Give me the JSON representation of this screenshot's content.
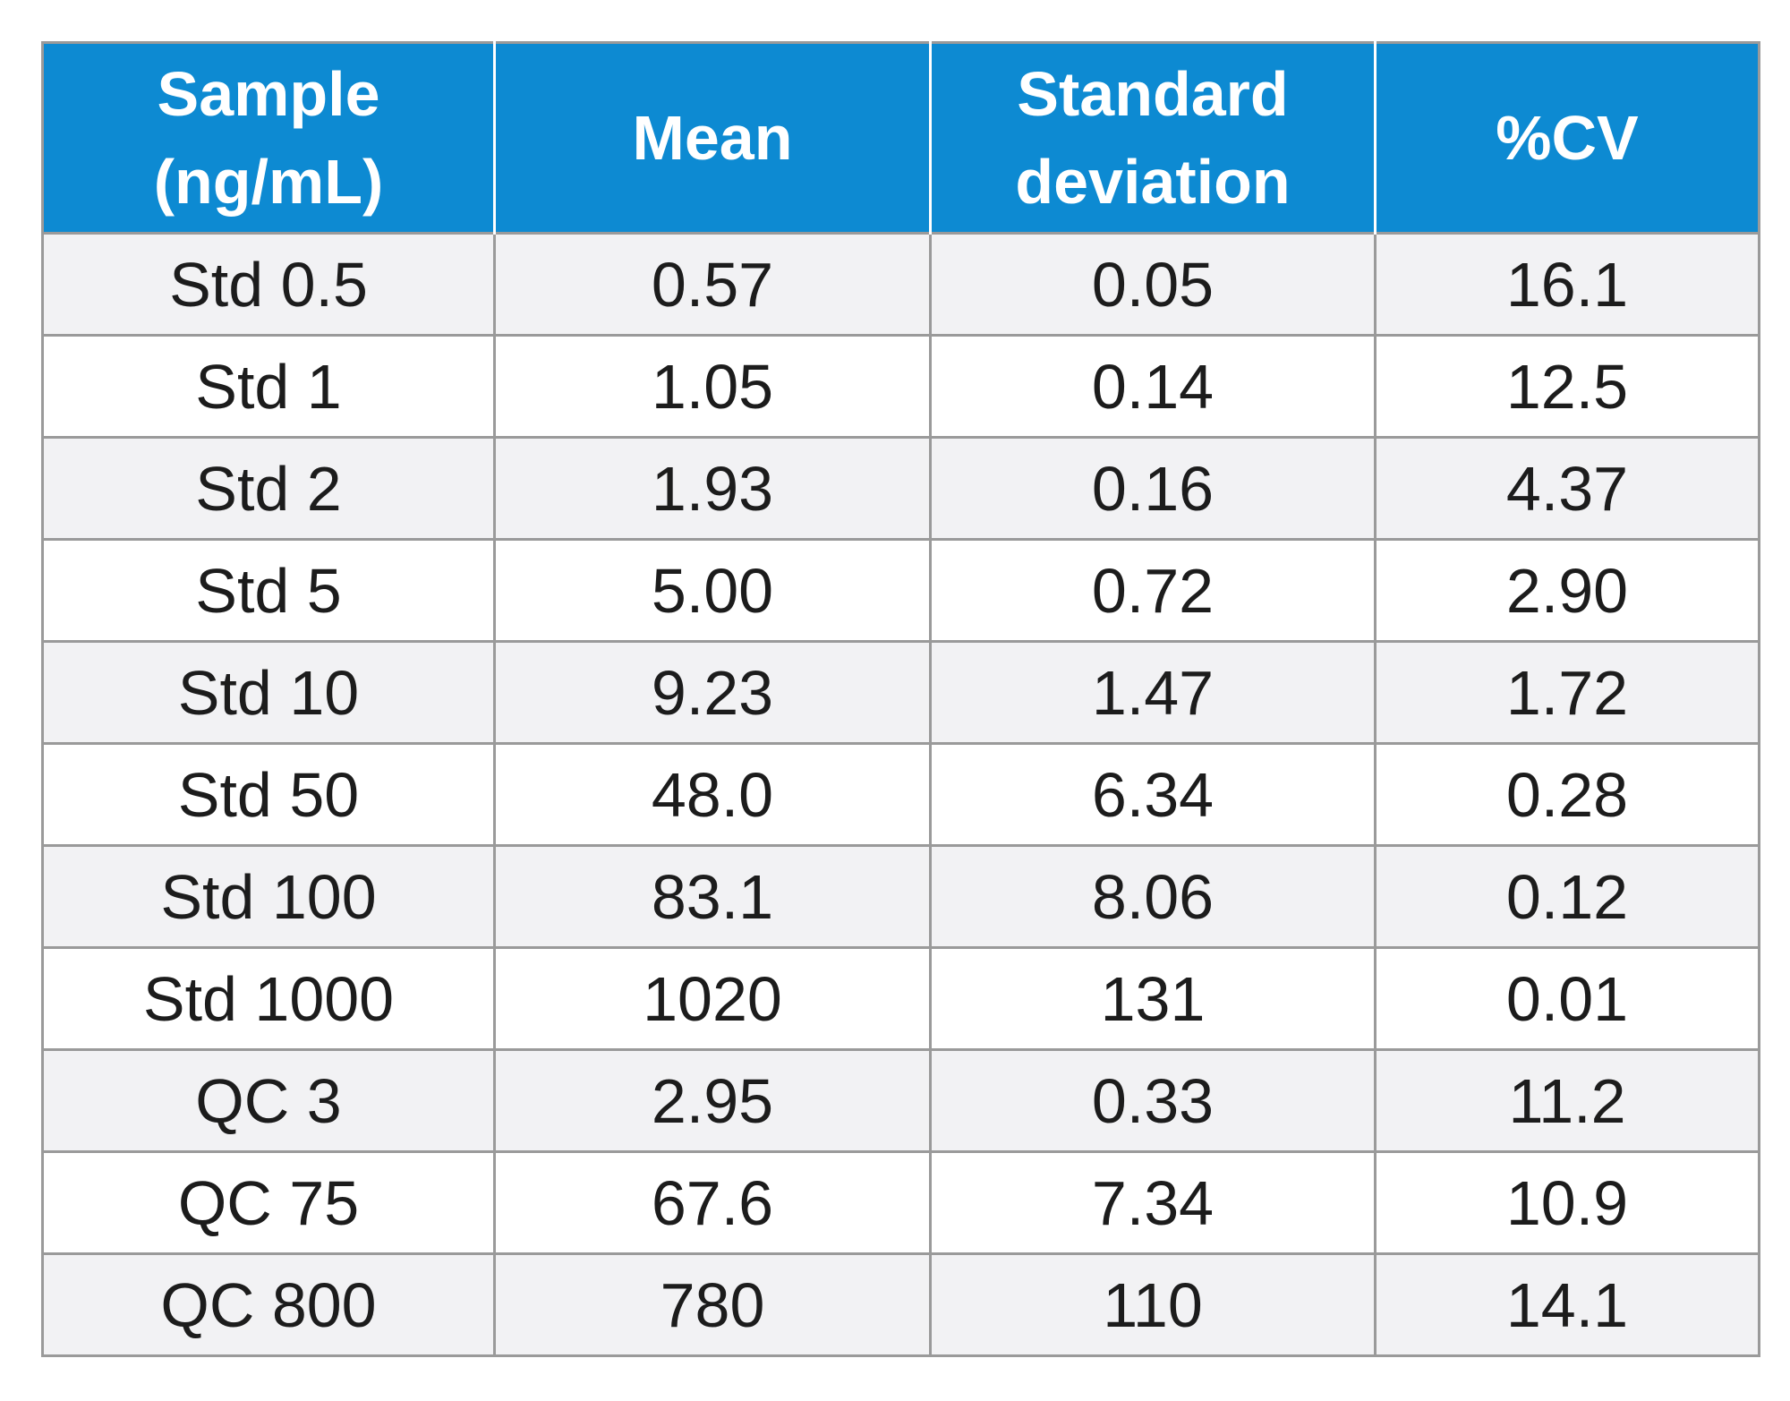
{
  "table": {
    "headers": [
      [
        "Sample",
        "(ng/mL)"
      ],
      [
        "Mean"
      ],
      [
        "Standard",
        "deviation"
      ],
      [
        "%CV"
      ]
    ],
    "rows": [
      [
        "Std 0.5",
        "0.57",
        "0.05",
        "16.1"
      ],
      [
        "Std 1",
        "1.05",
        "0.14",
        "12.5"
      ],
      [
        "Std 2",
        "1.93",
        "0.16",
        "4.37"
      ],
      [
        "Std 5",
        "5.00",
        "0.72",
        "2.90"
      ],
      [
        "Std 10",
        "9.23",
        "1.47",
        "1.72"
      ],
      [
        "Std 50",
        "48.0",
        "6.34",
        "0.28"
      ],
      [
        "Std 100",
        "83.1",
        "8.06",
        "0.12"
      ],
      [
        "Std 1000",
        "1020",
        "131",
        "0.01"
      ],
      [
        "QC 3",
        "2.95",
        "0.33",
        "11.2"
      ],
      [
        "QC 75",
        "67.6",
        "7.34",
        "10.9"
      ],
      [
        "QC 800",
        "780",
        "110",
        "14.1"
      ]
    ]
  },
  "colors": {
    "header_background": "#0d8ad2",
    "header_text": "#ffffff",
    "border": "#9a9a9a",
    "stripe_row": "#f2f2f4",
    "plain_row": "#ffffff",
    "body_text": "#1c1c1c"
  }
}
